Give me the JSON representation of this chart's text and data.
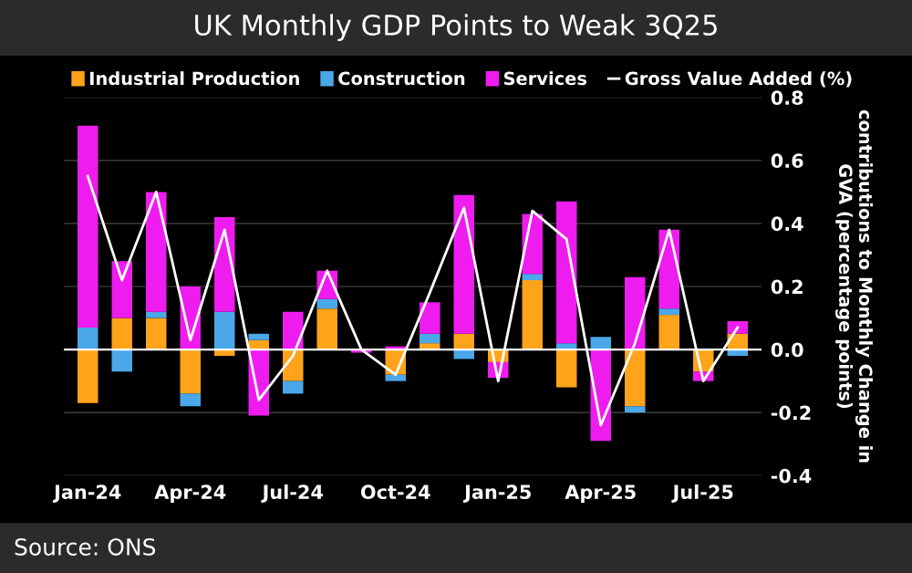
{
  "chart_data": {
    "type": "bar",
    "stacked": true,
    "title": "UK Monthly GDP Points to Weak 3Q25",
    "ylabel": "contributions to Monthly Change in GVA (percentage points)",
    "categories": [
      "Jan-24",
      null,
      null,
      "Apr-24",
      null,
      null,
      "Jul-24",
      null,
      null,
      "Oct-24",
      null,
      null,
      "Jan-25",
      null,
      null,
      "Apr-25",
      null,
      null,
      "Jul-25",
      null
    ],
    "series": [
      {
        "name": "Industrial Production",
        "color": "#ffa31a",
        "values": [
          -0.17,
          0.1,
          0.1,
          -0.14,
          -0.02,
          0.03,
          -0.1,
          0.13,
          0,
          -0.08,
          0.02,
          0.05,
          -0.04,
          0.22,
          -0.12,
          0,
          -0.18,
          0.11,
          -0.07,
          0.05
        ]
      },
      {
        "name": "Construction",
        "color": "#4aa8e8",
        "values": [
          0.07,
          -0.07,
          0.02,
          -0.04,
          0.12,
          0.02,
          -0.04,
          0.03,
          0,
          -0.02,
          0.03,
          -0.03,
          0,
          0.02,
          0.02,
          0.04,
          -0.02,
          0.02,
          0,
          -0.02
        ]
      },
      {
        "name": "Services",
        "color": "#ee1cee",
        "values": [
          0.64,
          0.18,
          0.38,
          0.2,
          0.3,
          -0.21,
          0.12,
          0.09,
          -0.01,
          0.01,
          0.1,
          0.44,
          -0.05,
          0.19,
          0.45,
          -0.29,
          0.23,
          0.25,
          -0.03,
          0.04
        ]
      },
      {
        "name": "Gross Value Added (%)",
        "type": "line",
        "color": "#ffffff",
        "values": [
          0.55,
          0.22,
          0.5,
          0.03,
          0.38,
          -0.16,
          -0.02,
          0.25,
          0.0,
          -0.08,
          0.18,
          0.45,
          -0.1,
          0.44,
          0.35,
          -0.24,
          0.02,
          0.38,
          -0.1,
          0.07
        ]
      }
    ],
    "ylim": [
      -0.4,
      0.8
    ],
    "yticks": [
      -0.4,
      -0.2,
      {
        "value": 0,
        "label": "0.0"
      },
      0.2,
      0.4,
      0.6,
      0.8
    ],
    "grid": "y",
    "legend": "top",
    "ref_lines": [
      {
        "axis": "y",
        "value": 0,
        "color": "#ffffff"
      }
    ],
    "annotations": [
      "Source: ONS"
    ]
  }
}
